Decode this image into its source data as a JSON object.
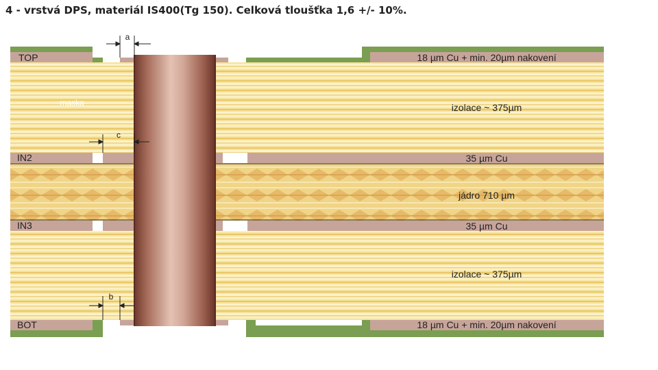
{
  "title": "4 - vrstvá DPS, materiál IS400(Tg 150). Celková tloušťka 1,6 +/- 10%.",
  "layers": {
    "top": "TOP",
    "in2": "IN2",
    "in3": "IN3",
    "bot": "BOT"
  },
  "labels": {
    "top_copper": "18 µm Cu + min. 20µm nakovení",
    "mask": "maska",
    "insulation_top": "izolace ~ 375µm",
    "in2_copper": "35 µm Cu",
    "core": "jádro 710 µm",
    "in3_copper": "35 µm Cu",
    "insulation_bottom": "izolace ~ 375µm",
    "bottom_copper": "18 µm Cu + min. 20µm nakovení"
  },
  "dimensions": {
    "a": "a",
    "b": "b",
    "c": "c"
  },
  "colors": {
    "mask": "#7a9e52",
    "copper_pad": "#c7a49a",
    "laminate": "#f3dc8a",
    "via": "#b07a68"
  }
}
